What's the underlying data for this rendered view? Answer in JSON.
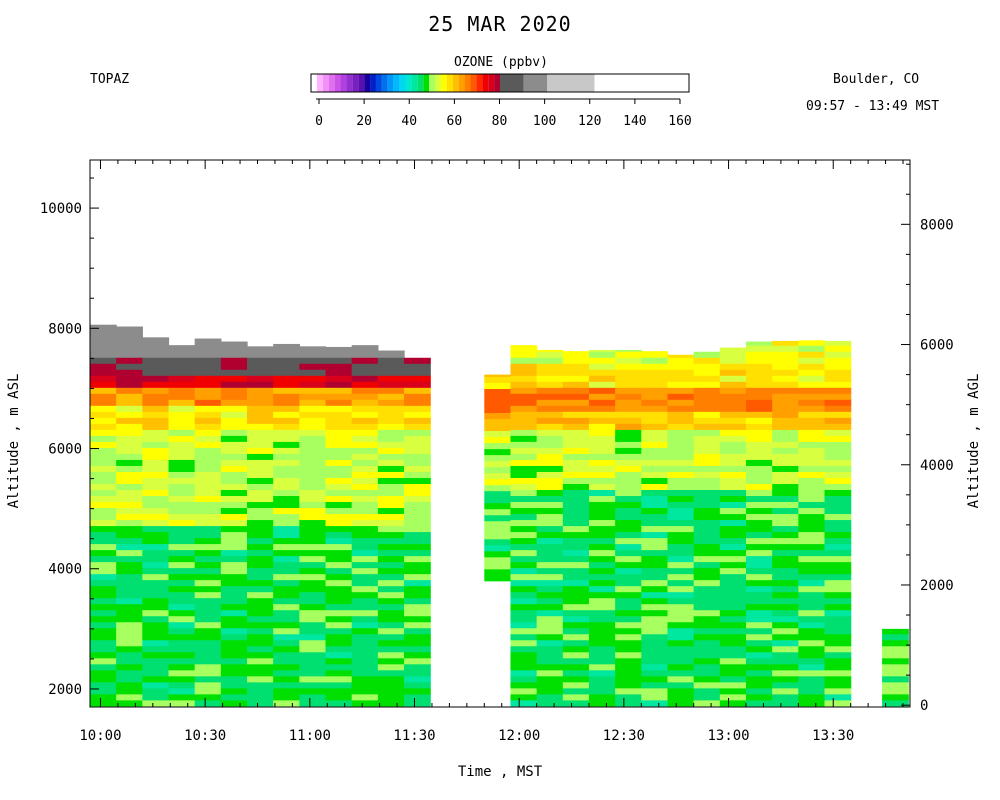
{
  "header": {
    "title": "25 MAR 2020",
    "site": "TOPAZ",
    "location": "Boulder, CO",
    "time_range": "09:57 - 13:49 MST"
  },
  "colorbar": {
    "title": "OZONE (ppbv)",
    "tick_labels": [
      "0",
      "20",
      "40",
      "60",
      "80",
      "100",
      "120",
      "140",
      "160"
    ],
    "bins": [
      {
        "from": 0,
        "to": 2.5,
        "color": "#ffffff"
      },
      {
        "from": 2.5,
        "to": 5,
        "color": "#ffb3ff"
      },
      {
        "from": 5,
        "to": 7.5,
        "color": "#f090f8"
      },
      {
        "from": 7.5,
        "to": 10,
        "color": "#e070f0"
      },
      {
        "from": 10,
        "to": 12.5,
        "color": "#cc55e8"
      },
      {
        "from": 12.5,
        "to": 15,
        "color": "#b040e0"
      },
      {
        "from": 15,
        "to": 17.5,
        "color": "#9530d0"
      },
      {
        "from": 17.5,
        "to": 20,
        "color": "#7a20c0"
      },
      {
        "from": 20,
        "to": 22.5,
        "color": "#5a10b0"
      },
      {
        "from": 22.5,
        "to": 25,
        "color": "#1a00a0"
      },
      {
        "from": 25,
        "to": 27.5,
        "color": "#0020c8"
      },
      {
        "from": 27.5,
        "to": 30,
        "color": "#0048e0"
      },
      {
        "from": 30,
        "to": 32.5,
        "color": "#0070f0"
      },
      {
        "from": 32.5,
        "to": 35,
        "color": "#0098f8"
      },
      {
        "from": 35,
        "to": 37.5,
        "color": "#00b8ff"
      },
      {
        "from": 37.5,
        "to": 40,
        "color": "#00d8f0"
      },
      {
        "from": 40,
        "to": 42.5,
        "color": "#00e8d0"
      },
      {
        "from": 42.5,
        "to": 45,
        "color": "#00e8a0"
      },
      {
        "from": 45,
        "to": 47.5,
        "color": "#00e070"
      },
      {
        "from": 47.5,
        "to": 50,
        "color": "#00e000"
      },
      {
        "from": 50,
        "to": 52.5,
        "color": "#a8ff60"
      },
      {
        "from": 52.5,
        "to": 55,
        "color": "#d8ff40"
      },
      {
        "from": 55,
        "to": 57.5,
        "color": "#ffff00"
      },
      {
        "from": 57.5,
        "to": 60,
        "color": "#ffe000"
      },
      {
        "from": 60,
        "to": 62.5,
        "color": "#ffc000"
      },
      {
        "from": 62.5,
        "to": 65,
        "color": "#ffa000"
      },
      {
        "from": 65,
        "to": 67.5,
        "color": "#ff8000"
      },
      {
        "from": 67.5,
        "to": 70,
        "color": "#ff5a00"
      },
      {
        "from": 70,
        "to": 72.5,
        "color": "#ff2800"
      },
      {
        "from": 72.5,
        "to": 75,
        "color": "#f00000"
      },
      {
        "from": 75,
        "to": 77.5,
        "color": "#d8001a"
      },
      {
        "from": 77.5,
        "to": 80,
        "color": "#b00030"
      },
      {
        "from": 80,
        "to": 90,
        "color": "#5a5a5a"
      },
      {
        "from": 90,
        "to": 100,
        "color": "#8c8c8c"
      },
      {
        "from": 100,
        "to": 120,
        "color": "#c8c8c8"
      }
    ]
  },
  "chart_data": {
    "type": "heatmap",
    "title": "25 MAR 2020",
    "xlabel": "Time , MST",
    "ylabel_left": "Altitude , m ASL",
    "ylabel_right": "Altitude , m AGL",
    "x_tick_labels": [
      "10:00",
      "10:30",
      "11:00",
      "11:30",
      "12:00",
      "12:30",
      "13:00",
      "13:30"
    ],
    "y_left_tick_labels": [
      "2000",
      "4000",
      "6000",
      "8000",
      "10000"
    ],
    "y_right_tick_labels": [
      "0",
      "2000",
      "4000",
      "6000",
      "8000"
    ],
    "x_range_min": [
      597,
      832
    ],
    "y_left_range_m": [
      1700,
      10800
    ],
    "y_right_range_m": [
      -30,
      9070
    ],
    "value_field": "ozone_ppbv",
    "colorbar_range": [
      0,
      160
    ],
    "profile_time_step_min": 7.5,
    "profiles_group_1": {
      "start_min": 597,
      "count": 13,
      "top_m": [
        8060,
        8030,
        7850,
        7720,
        7830,
        7780,
        7700,
        7740,
        7700,
        7690,
        7720,
        7630,
        7510
      ],
      "bottom_m": 1720
    },
    "profiles_group_2": {
      "start_min": 710,
      "count": 14,
      "top_m": [
        7230,
        7720,
        7640,
        7620,
        7640,
        7640,
        7620,
        7560,
        7610,
        7680,
        7780,
        7790,
        7800,
        7790
      ],
      "bottom_m": 3800,
      "bottom_after_first_m": 1720
    },
    "final_profile": {
      "start_min": 824,
      "top_m": 3000,
      "bottom_m": 1720
    },
    "ozone_layers_left": [
      {
        "from_m": 1700,
        "to_m": 4700,
        "ozone_ppbv": 48
      },
      {
        "from_m": 4700,
        "to_m": 6300,
        "ozone_ppbv": 53
      },
      {
        "from_m": 6300,
        "to_m": 6700,
        "ozone_ppbv": 58
      },
      {
        "from_m": 6700,
        "to_m": 6950,
        "ozone_ppbv": 65
      },
      {
        "from_m": 6950,
        "to_m": 7200,
        "ozone_ppbv": 76
      },
      {
        "from_m": 7200,
        "to_m": 7450,
        "ozone_ppbv": 82
      },
      {
        "from_m": 7450,
        "to_m": 8100,
        "ozone_ppbv": 95
      }
    ],
    "ozone_layers_right": [
      {
        "from_m": 1700,
        "to_m": 5300,
        "ozone_ppbv": 48
      },
      {
        "from_m": 5300,
        "to_m": 6300,
        "ozone_ppbv": 53
      },
      {
        "from_m": 6300,
        "to_m": 6600,
        "ozone_ppbv": 60
      },
      {
        "from_m": 6600,
        "to_m": 7000,
        "ozone_ppbv": 66
      },
      {
        "from_m": 7000,
        "to_m": 7400,
        "ozone_ppbv": 58
      },
      {
        "from_m": 7400,
        "to_m": 7800,
        "ozone_ppbv": 55
      }
    ],
    "grid": false
  }
}
